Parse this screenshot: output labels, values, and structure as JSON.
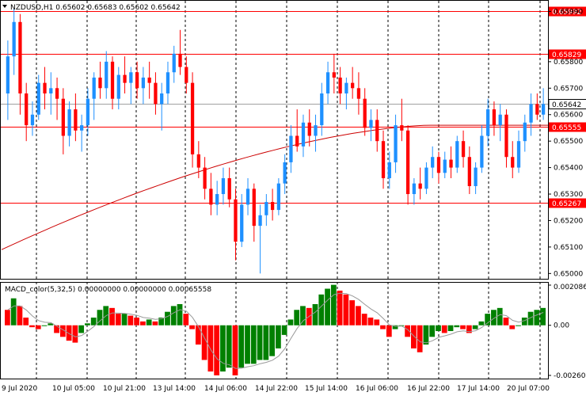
{
  "window": {
    "symbol_header": "NZDUSD,H1  0.65602 0.65683 0.65602 0.65642",
    "toggle_icon": "triangle-down-icon"
  },
  "colors": {
    "bull": "#1e90ff",
    "bear": "#ff0000",
    "ma": "#cc0000",
    "level_line": "#ff0000",
    "level_label_bg": "#ff0000",
    "level_label_text": "#ffffff",
    "macd_up": "#008000",
    "macd_down": "#ff0000",
    "signal": "#999999",
    "grid": "#000000",
    "current_price_line": "#a0a0a0"
  },
  "price_axis": {
    "ticks": [
      "0.65990",
      "0.65800",
      "0.65700",
      "0.65600",
      "0.65500",
      "0.65400",
      "0.65300",
      "0.65200",
      "0.65100",
      "0.65000"
    ],
    "levels": [
      "0.65992",
      "0.65829",
      "0.65555",
      "0.65267"
    ],
    "current_price": "0.65642"
  },
  "time_axis": {
    "labels": [
      "9 Jul 2020",
      "10 Jul 05:00",
      "10 Jul 21:00",
      "13 Jul 14:00",
      "14 Jul 06:00",
      "14 Jul 22:00",
      "15 Jul 14:00",
      "16 Jul 06:00",
      "16 Jul 22:00",
      "17 Jul 14:00",
      "20 Jul 07:00"
    ]
  },
  "indicator": {
    "header": "MACD_color(5,32,5) 0.00000000 0.00000000 0.00065558",
    "ticks": [
      "0.0020860",
      "0.00",
      "-0.0026023"
    ]
  },
  "chart_data": {
    "type": "candlestick",
    "title": "NZDUSD,H1",
    "ylim": [
      0.6498,
      0.6603
    ],
    "levels": [
      0.65992,
      0.65829,
      0.65555,
      0.65267
    ],
    "candles": [
      {
        "o": 0.6568,
        "h": 0.6588,
        "l": 0.6558,
        "c": 0.6582
      },
      {
        "o": 0.6582,
        "h": 0.66,
        "l": 0.6575,
        "c": 0.6595
      },
      {
        "o": 0.6595,
        "h": 0.6598,
        "l": 0.656,
        "c": 0.6568
      },
      {
        "o": 0.6568,
        "h": 0.6572,
        "l": 0.655,
        "c": 0.6556
      },
      {
        "o": 0.6556,
        "h": 0.6565,
        "l": 0.6552,
        "c": 0.656
      },
      {
        "o": 0.656,
        "h": 0.6575,
        "l": 0.6558,
        "c": 0.6572
      },
      {
        "o": 0.6572,
        "h": 0.6578,
        "l": 0.6562,
        "c": 0.6568
      },
      {
        "o": 0.6568,
        "h": 0.6576,
        "l": 0.656,
        "c": 0.657
      },
      {
        "o": 0.657,
        "h": 0.6574,
        "l": 0.6558,
        "c": 0.6566
      },
      {
        "o": 0.6566,
        "h": 0.657,
        "l": 0.6545,
        "c": 0.6552
      },
      {
        "o": 0.6552,
        "h": 0.6565,
        "l": 0.6548,
        "c": 0.6562
      },
      {
        "o": 0.6562,
        "h": 0.6568,
        "l": 0.655,
        "c": 0.6554
      },
      {
        "o": 0.6554,
        "h": 0.656,
        "l": 0.6546,
        "c": 0.6556
      },
      {
        "o": 0.6556,
        "h": 0.657,
        "l": 0.6552,
        "c": 0.6566
      },
      {
        "o": 0.6566,
        "h": 0.6576,
        "l": 0.6558,
        "c": 0.6574
      },
      {
        "o": 0.6574,
        "h": 0.658,
        "l": 0.6566,
        "c": 0.657
      },
      {
        "o": 0.657,
        "h": 0.6584,
        "l": 0.6566,
        "c": 0.658
      },
      {
        "o": 0.658,
        "h": 0.6582,
        "l": 0.6562,
        "c": 0.6566
      },
      {
        "o": 0.6566,
        "h": 0.6578,
        "l": 0.6562,
        "c": 0.6575
      },
      {
        "o": 0.6575,
        "h": 0.6582,
        "l": 0.6568,
        "c": 0.6572
      },
      {
        "o": 0.6572,
        "h": 0.6578,
        "l": 0.6564,
        "c": 0.6576
      },
      {
        "o": 0.6576,
        "h": 0.658,
        "l": 0.6566,
        "c": 0.657
      },
      {
        "o": 0.657,
        "h": 0.6578,
        "l": 0.6564,
        "c": 0.6574
      },
      {
        "o": 0.6574,
        "h": 0.658,
        "l": 0.6566,
        "c": 0.6572
      },
      {
        "o": 0.6572,
        "h": 0.6576,
        "l": 0.656,
        "c": 0.6564
      },
      {
        "o": 0.6564,
        "h": 0.6572,
        "l": 0.6554,
        "c": 0.6568
      },
      {
        "o": 0.6568,
        "h": 0.658,
        "l": 0.6564,
        "c": 0.6576
      },
      {
        "o": 0.6576,
        "h": 0.6586,
        "l": 0.6572,
        "c": 0.6583
      },
      {
        "o": 0.6583,
        "h": 0.6592,
        "l": 0.6575,
        "c": 0.6578
      },
      {
        "o": 0.6578,
        "h": 0.6582,
        "l": 0.6568,
        "c": 0.6572
      },
      {
        "o": 0.6572,
        "h": 0.6576,
        "l": 0.654,
        "c": 0.6545
      },
      {
        "o": 0.6545,
        "h": 0.655,
        "l": 0.6536,
        "c": 0.654
      },
      {
        "o": 0.654,
        "h": 0.6544,
        "l": 0.6528,
        "c": 0.6532
      },
      {
        "o": 0.6532,
        "h": 0.6538,
        "l": 0.6522,
        "c": 0.6526
      },
      {
        "o": 0.6526,
        "h": 0.6535,
        "l": 0.6522,
        "c": 0.653
      },
      {
        "o": 0.653,
        "h": 0.654,
        "l": 0.6526,
        "c": 0.6536
      },
      {
        "o": 0.6536,
        "h": 0.654,
        "l": 0.6525,
        "c": 0.6528
      },
      {
        "o": 0.6528,
        "h": 0.6532,
        "l": 0.6505,
        "c": 0.6512
      },
      {
        "o": 0.6512,
        "h": 0.653,
        "l": 0.651,
        "c": 0.6526
      },
      {
        "o": 0.6526,
        "h": 0.6536,
        "l": 0.6522,
        "c": 0.6532
      },
      {
        "o": 0.6532,
        "h": 0.6534,
        "l": 0.6512,
        "c": 0.6518
      },
      {
        "o": 0.6518,
        "h": 0.6526,
        "l": 0.65,
        "c": 0.6522
      },
      {
        "o": 0.6522,
        "h": 0.653,
        "l": 0.6518,
        "c": 0.6527
      },
      {
        "o": 0.6527,
        "h": 0.6532,
        "l": 0.652,
        "c": 0.6524
      },
      {
        "o": 0.6524,
        "h": 0.6536,
        "l": 0.6522,
        "c": 0.6534
      },
      {
        "o": 0.6534,
        "h": 0.6545,
        "l": 0.653,
        "c": 0.6542
      },
      {
        "o": 0.6542,
        "h": 0.6556,
        "l": 0.6538,
        "c": 0.6552
      },
      {
        "o": 0.6552,
        "h": 0.6562,
        "l": 0.6546,
        "c": 0.6548
      },
      {
        "o": 0.6548,
        "h": 0.656,
        "l": 0.6544,
        "c": 0.6557
      },
      {
        "o": 0.6557,
        "h": 0.6562,
        "l": 0.6548,
        "c": 0.6552
      },
      {
        "o": 0.6552,
        "h": 0.656,
        "l": 0.6546,
        "c": 0.6556
      },
      {
        "o": 0.6556,
        "h": 0.6572,
        "l": 0.6552,
        "c": 0.6568
      },
      {
        "o": 0.6568,
        "h": 0.658,
        "l": 0.6564,
        "c": 0.6576
      },
      {
        "o": 0.6576,
        "h": 0.6583,
        "l": 0.6568,
        "c": 0.6574
      },
      {
        "o": 0.6574,
        "h": 0.6578,
        "l": 0.6564,
        "c": 0.6568
      },
      {
        "o": 0.6568,
        "h": 0.6574,
        "l": 0.6562,
        "c": 0.6572
      },
      {
        "o": 0.6572,
        "h": 0.6578,
        "l": 0.6566,
        "c": 0.657
      },
      {
        "o": 0.657,
        "h": 0.6576,
        "l": 0.656,
        "c": 0.6566
      },
      {
        "o": 0.6566,
        "h": 0.657,
        "l": 0.6552,
        "c": 0.6555
      },
      {
        "o": 0.6555,
        "h": 0.6562,
        "l": 0.655,
        "c": 0.6558
      },
      {
        "o": 0.6558,
        "h": 0.6562,
        "l": 0.6546,
        "c": 0.655
      },
      {
        "o": 0.655,
        "h": 0.6554,
        "l": 0.6532,
        "c": 0.6536
      },
      {
        "o": 0.6536,
        "h": 0.6546,
        "l": 0.6532,
        "c": 0.6542
      },
      {
        "o": 0.6542,
        "h": 0.656,
        "l": 0.6538,
        "c": 0.6556
      },
      {
        "o": 0.6556,
        "h": 0.6566,
        "l": 0.655,
        "c": 0.6554
      },
      {
        "o": 0.6554,
        "h": 0.6556,
        "l": 0.6526,
        "c": 0.653
      },
      {
        "o": 0.653,
        "h": 0.6536,
        "l": 0.6526,
        "c": 0.6534
      },
      {
        "o": 0.6534,
        "h": 0.654,
        "l": 0.6528,
        "c": 0.6532
      },
      {
        "o": 0.6532,
        "h": 0.6542,
        "l": 0.653,
        "c": 0.654
      },
      {
        "o": 0.654,
        "h": 0.6548,
        "l": 0.6536,
        "c": 0.6544
      },
      {
        "o": 0.6544,
        "h": 0.6546,
        "l": 0.6534,
        "c": 0.6538
      },
      {
        "o": 0.6538,
        "h": 0.6546,
        "l": 0.6536,
        "c": 0.6543
      },
      {
        "o": 0.6543,
        "h": 0.6548,
        "l": 0.6536,
        "c": 0.654
      },
      {
        "o": 0.654,
        "h": 0.6552,
        "l": 0.6538,
        "c": 0.655
      },
      {
        "o": 0.655,
        "h": 0.6554,
        "l": 0.654,
        "c": 0.6544
      },
      {
        "o": 0.6544,
        "h": 0.6548,
        "l": 0.653,
        "c": 0.6533
      },
      {
        "o": 0.6533,
        "h": 0.6542,
        "l": 0.653,
        "c": 0.654
      },
      {
        "o": 0.654,
        "h": 0.6556,
        "l": 0.6538,
        "c": 0.6552
      },
      {
        "o": 0.6552,
        "h": 0.6566,
        "l": 0.6548,
        "c": 0.6562
      },
      {
        "o": 0.6562,
        "h": 0.6565,
        "l": 0.6552,
        "c": 0.6556
      },
      {
        "o": 0.6556,
        "h": 0.6564,
        "l": 0.655,
        "c": 0.656
      },
      {
        "o": 0.656,
        "h": 0.6562,
        "l": 0.654,
        "c": 0.6544
      },
      {
        "o": 0.6544,
        "h": 0.655,
        "l": 0.6536,
        "c": 0.654
      },
      {
        "o": 0.654,
        "h": 0.6554,
        "l": 0.6538,
        "c": 0.655
      },
      {
        "o": 0.655,
        "h": 0.656,
        "l": 0.6546,
        "c": 0.6557
      },
      {
        "o": 0.6557,
        "h": 0.6568,
        "l": 0.6552,
        "c": 0.6564
      },
      {
        "o": 0.6564,
        "h": 0.6568,
        "l": 0.6558,
        "c": 0.656
      },
      {
        "o": 0.656,
        "h": 0.657,
        "l": 0.6558,
        "c": 0.6564
      }
    ],
    "ma_start": 0.6509,
    "ma_end": 0.6556,
    "macd": [
      0.0008,
      0.0014,
      0.001,
      0.0004,
      -0.0001,
      -0.0002,
      0.0,
      0.0001,
      -0.0004,
      -0.0006,
      -0.0008,
      -0.0009,
      -0.0004,
      0.0001,
      0.0004,
      0.0008,
      0.001,
      0.0009,
      0.0006,
      0.0006,
      0.0005,
      0.0004,
      0.0002,
      0.0003,
      0.0002,
      0.0004,
      0.0007,
      0.001,
      0.0011,
      0.0006,
      -0.0002,
      -0.001,
      -0.0018,
      -0.0024,
      -0.0026,
      -0.0024,
      -0.0022,
      -0.0026,
      -0.0022,
      -0.002,
      -0.002,
      -0.0018,
      -0.0018,
      -0.0016,
      -0.0012,
      -0.0005,
      0.0003,
      0.0008,
      0.001,
      0.0009,
      0.0011,
      0.0016,
      0.0019,
      0.0021,
      0.0018,
      0.0016,
      0.0013,
      0.001,
      0.0006,
      0.0004,
      0.0003,
      -0.0002,
      -0.0006,
      -0.0002,
      0.0,
      -0.0006,
      -0.0012,
      -0.0014,
      -0.001,
      -0.0006,
      -0.0003,
      -0.0004,
      -0.0003,
      -0.0001,
      -0.0002,
      -0.0004,
      -0.0002,
      0.0002,
      0.0006,
      0.0008,
      0.0009,
      0.0004,
      -0.0002,
      0.0,
      0.0004,
      0.0007,
      0.0008,
      0.0009
    ]
  }
}
